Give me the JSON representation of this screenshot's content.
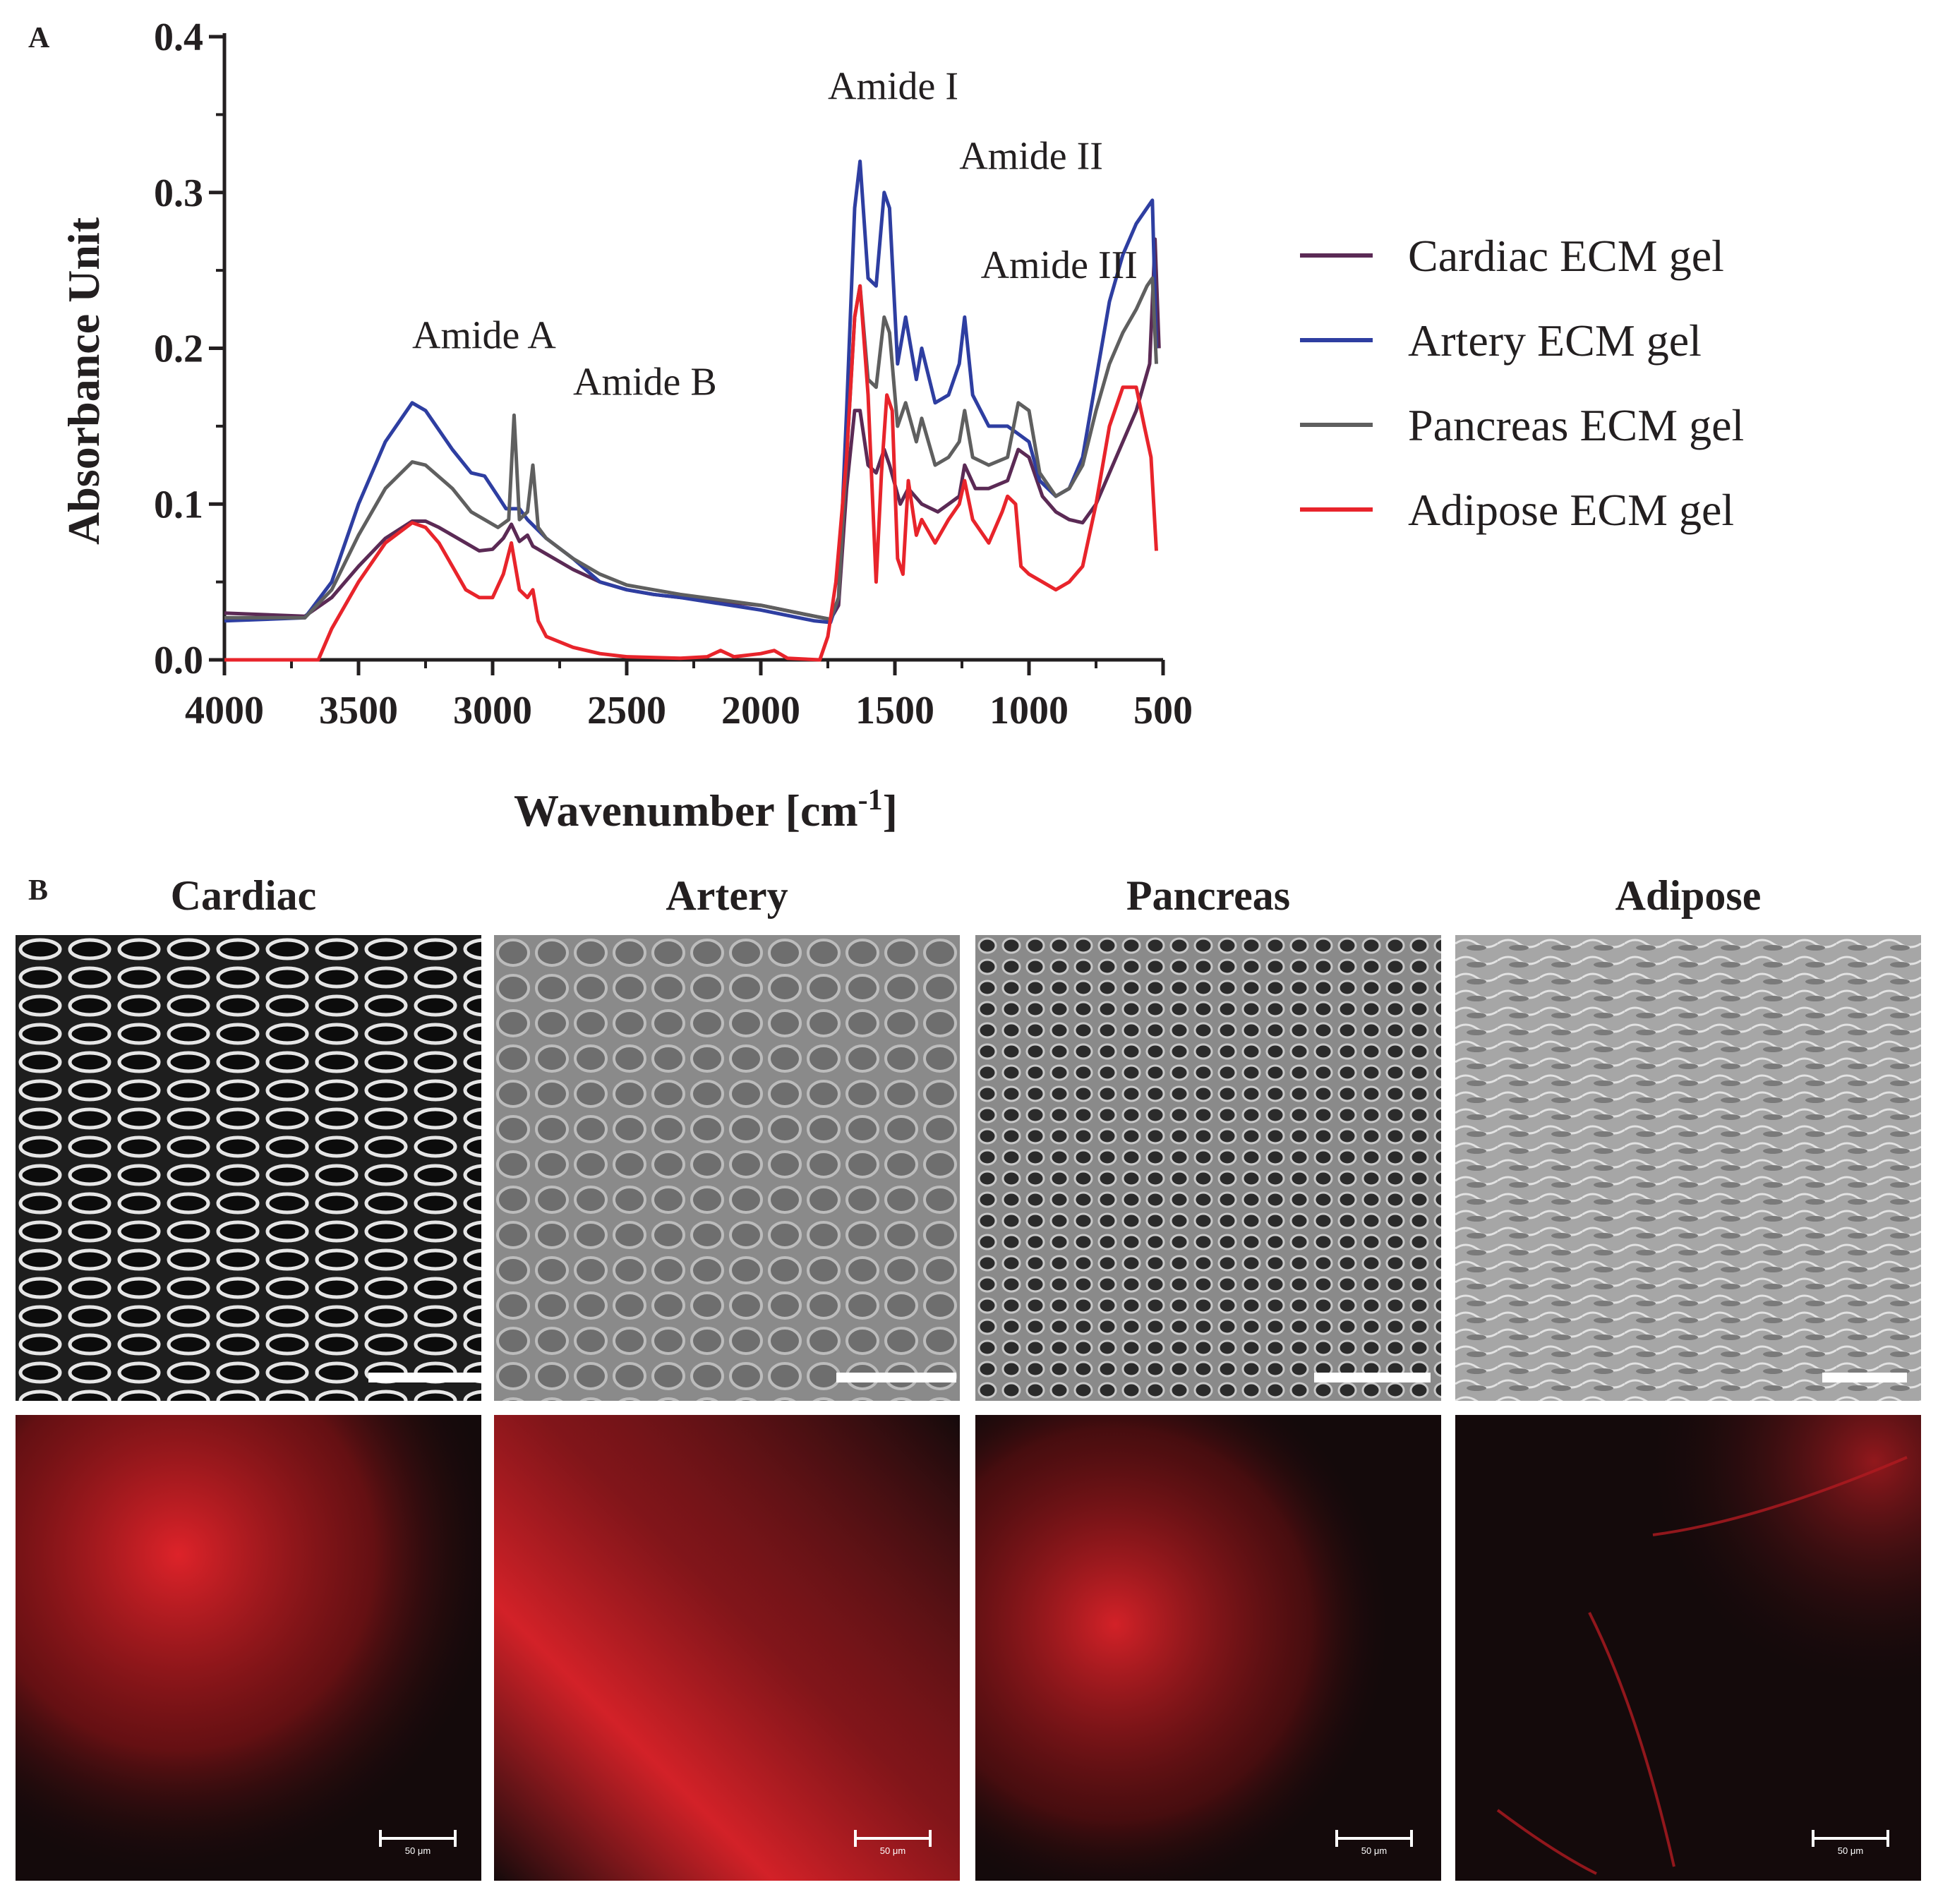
{
  "panels": {
    "a_letter": "A",
    "b_letter": "B"
  },
  "chart_data": {
    "type": "line",
    "title": "",
    "xlabel": "Wavenumber [cm",
    "xlabel_sup": "-1",
    "xlabel_end": "]",
    "ylabel": "Absorbance Unit",
    "xlim": [
      4000,
      500
    ],
    "ylim": [
      0,
      0.4
    ],
    "x_ticks": [
      4000,
      3500,
      3000,
      2500,
      2000,
      1500,
      1000,
      500
    ],
    "y_ticks": [
      "0.0",
      "0.1",
      "0.2",
      "0.3",
      "0.4"
    ],
    "legend_position": "right",
    "annotations": [
      {
        "text": "Amide A",
        "x": 3300,
        "y": 0.2
      },
      {
        "text": "Amide B",
        "x": 2700,
        "y": 0.17
      },
      {
        "text": "Amide I",
        "x": 1750,
        "y": 0.36
      },
      {
        "text": "Amide II",
        "x": 1260,
        "y": 0.315
      },
      {
        "text": "Amide III",
        "x": 1180,
        "y": 0.245
      }
    ],
    "series": [
      {
        "name": "Cardiac ECM gel",
        "color": "#5b2a55",
        "points": [
          [
            4000,
            0.03
          ],
          [
            3700,
            0.028
          ],
          [
            3600,
            0.04
          ],
          [
            3500,
            0.06
          ],
          [
            3400,
            0.078
          ],
          [
            3300,
            0.089
          ],
          [
            3250,
            0.089
          ],
          [
            3200,
            0.085
          ],
          [
            3100,
            0.075
          ],
          [
            3050,
            0.07
          ],
          [
            3000,
            0.071
          ],
          [
            2960,
            0.078
          ],
          [
            2930,
            0.087
          ],
          [
            2900,
            0.076
          ],
          [
            2870,
            0.08
          ],
          [
            2850,
            0.073
          ],
          [
            2800,
            0.068
          ],
          [
            2700,
            0.058
          ],
          [
            2600,
            0.05
          ],
          [
            2500,
            0.045
          ],
          [
            2400,
            0.042
          ],
          [
            2300,
            0.04
          ],
          [
            2000,
            0.035
          ],
          [
            1800,
            0.028
          ],
          [
            1740,
            0.026
          ],
          [
            1710,
            0.035
          ],
          [
            1680,
            0.11
          ],
          [
            1650,
            0.16
          ],
          [
            1630,
            0.16
          ],
          [
            1600,
            0.125
          ],
          [
            1570,
            0.12
          ],
          [
            1540,
            0.135
          ],
          [
            1520,
            0.125
          ],
          [
            1480,
            0.1
          ],
          [
            1450,
            0.11
          ],
          [
            1400,
            0.1
          ],
          [
            1340,
            0.095
          ],
          [
            1300,
            0.1
          ],
          [
            1260,
            0.105
          ],
          [
            1240,
            0.125
          ],
          [
            1200,
            0.11
          ],
          [
            1150,
            0.11
          ],
          [
            1080,
            0.115
          ],
          [
            1040,
            0.135
          ],
          [
            1000,
            0.13
          ],
          [
            950,
            0.105
          ],
          [
            900,
            0.095
          ],
          [
            850,
            0.09
          ],
          [
            800,
            0.088
          ],
          [
            750,
            0.1
          ],
          [
            700,
            0.12
          ],
          [
            650,
            0.14
          ],
          [
            600,
            0.16
          ],
          [
            550,
            0.19
          ],
          [
            530,
            0.27
          ],
          [
            515,
            0.2
          ]
        ]
      },
      {
        "name": "Artery ECM gel",
        "color": "#2e3ea1",
        "points": [
          [
            4000,
            0.025
          ],
          [
            3700,
            0.027
          ],
          [
            3600,
            0.05
          ],
          [
            3500,
            0.1
          ],
          [
            3400,
            0.14
          ],
          [
            3300,
            0.165
          ],
          [
            3250,
            0.16
          ],
          [
            3150,
            0.135
          ],
          [
            3080,
            0.12
          ],
          [
            3030,
            0.118
          ],
          [
            2980,
            0.105
          ],
          [
            2950,
            0.097
          ],
          [
            2900,
            0.097
          ],
          [
            2870,
            0.09
          ],
          [
            2800,
            0.078
          ],
          [
            2700,
            0.065
          ],
          [
            2600,
            0.05
          ],
          [
            2500,
            0.045
          ],
          [
            2400,
            0.042
          ],
          [
            2300,
            0.04
          ],
          [
            2000,
            0.032
          ],
          [
            1800,
            0.025
          ],
          [
            1740,
            0.024
          ],
          [
            1710,
            0.04
          ],
          [
            1680,
            0.16
          ],
          [
            1650,
            0.29
          ],
          [
            1630,
            0.32
          ],
          [
            1600,
            0.245
          ],
          [
            1570,
            0.24
          ],
          [
            1540,
            0.3
          ],
          [
            1520,
            0.29
          ],
          [
            1490,
            0.19
          ],
          [
            1460,
            0.22
          ],
          [
            1420,
            0.18
          ],
          [
            1400,
            0.2
          ],
          [
            1350,
            0.165
          ],
          [
            1300,
            0.17
          ],
          [
            1260,
            0.19
          ],
          [
            1240,
            0.22
          ],
          [
            1210,
            0.17
          ],
          [
            1150,
            0.15
          ],
          [
            1080,
            0.15
          ],
          [
            1040,
            0.145
          ],
          [
            1000,
            0.14
          ],
          [
            960,
            0.115
          ],
          [
            900,
            0.105
          ],
          [
            850,
            0.11
          ],
          [
            800,
            0.13
          ],
          [
            750,
            0.18
          ],
          [
            700,
            0.23
          ],
          [
            650,
            0.26
          ],
          [
            600,
            0.28
          ],
          [
            560,
            0.29
          ],
          [
            540,
            0.295
          ],
          [
            525,
            0.2
          ]
        ]
      },
      {
        "name": "Pancreas ECM gel",
        "color": "#5f5f5f",
        "points": [
          [
            4000,
            0.027
          ],
          [
            3700,
            0.027
          ],
          [
            3600,
            0.045
          ],
          [
            3500,
            0.08
          ],
          [
            3400,
            0.11
          ],
          [
            3300,
            0.127
          ],
          [
            3250,
            0.125
          ],
          [
            3150,
            0.11
          ],
          [
            3080,
            0.095
          ],
          [
            3030,
            0.09
          ],
          [
            2980,
            0.085
          ],
          [
            2940,
            0.09
          ],
          [
            2920,
            0.157
          ],
          [
            2900,
            0.09
          ],
          [
            2870,
            0.095
          ],
          [
            2850,
            0.125
          ],
          [
            2830,
            0.085
          ],
          [
            2800,
            0.078
          ],
          [
            2700,
            0.065
          ],
          [
            2600,
            0.055
          ],
          [
            2500,
            0.048
          ],
          [
            2400,
            0.045
          ],
          [
            2300,
            0.042
          ],
          [
            2000,
            0.035
          ],
          [
            1800,
            0.028
          ],
          [
            1740,
            0.026
          ],
          [
            1710,
            0.04
          ],
          [
            1680,
            0.13
          ],
          [
            1650,
            0.22
          ],
          [
            1630,
            0.24
          ],
          [
            1600,
            0.18
          ],
          [
            1570,
            0.175
          ],
          [
            1540,
            0.22
          ],
          [
            1520,
            0.21
          ],
          [
            1490,
            0.15
          ],
          [
            1460,
            0.165
          ],
          [
            1420,
            0.14
          ],
          [
            1400,
            0.155
          ],
          [
            1350,
            0.125
          ],
          [
            1300,
            0.13
          ],
          [
            1260,
            0.14
          ],
          [
            1240,
            0.16
          ],
          [
            1210,
            0.13
          ],
          [
            1150,
            0.125
          ],
          [
            1080,
            0.13
          ],
          [
            1040,
            0.165
          ],
          [
            1000,
            0.16
          ],
          [
            960,
            0.12
          ],
          [
            900,
            0.105
          ],
          [
            850,
            0.11
          ],
          [
            800,
            0.125
          ],
          [
            750,
            0.16
          ],
          [
            700,
            0.19
          ],
          [
            650,
            0.21
          ],
          [
            600,
            0.225
          ],
          [
            560,
            0.24
          ],
          [
            540,
            0.245
          ],
          [
            525,
            0.19
          ]
        ]
      },
      {
        "name": "Adipose ECM gel",
        "color": "#e8242b",
        "points": [
          [
            4000,
            0.0
          ],
          [
            3650,
            0.0
          ],
          [
            3600,
            0.02
          ],
          [
            3500,
            0.05
          ],
          [
            3400,
            0.075
          ],
          [
            3300,
            0.088
          ],
          [
            3250,
            0.085
          ],
          [
            3200,
            0.075
          ],
          [
            3150,
            0.06
          ],
          [
            3100,
            0.045
          ],
          [
            3050,
            0.04
          ],
          [
            3000,
            0.04
          ],
          [
            2960,
            0.055
          ],
          [
            2930,
            0.075
          ],
          [
            2900,
            0.045
          ],
          [
            2870,
            0.04
          ],
          [
            2850,
            0.045
          ],
          [
            2830,
            0.025
          ],
          [
            2800,
            0.015
          ],
          [
            2700,
            0.008
          ],
          [
            2600,
            0.004
          ],
          [
            2500,
            0.002
          ],
          [
            2300,
            0.001
          ],
          [
            2200,
            0.002
          ],
          [
            2150,
            0.006
          ],
          [
            2100,
            0.002
          ],
          [
            2000,
            0.004
          ],
          [
            1950,
            0.006
          ],
          [
            1900,
            0.001
          ],
          [
            1780,
            0.0
          ],
          [
            1750,
            0.015
          ],
          [
            1720,
            0.05
          ],
          [
            1700,
            0.09
          ],
          [
            1680,
            0.13
          ],
          [
            1650,
            0.22
          ],
          [
            1630,
            0.24
          ],
          [
            1600,
            0.17
          ],
          [
            1570,
            0.05
          ],
          [
            1550,
            0.12
          ],
          [
            1530,
            0.17
          ],
          [
            1510,
            0.16
          ],
          [
            1490,
            0.065
          ],
          [
            1470,
            0.055
          ],
          [
            1450,
            0.115
          ],
          [
            1420,
            0.08
          ],
          [
            1400,
            0.09
          ],
          [
            1350,
            0.075
          ],
          [
            1300,
            0.09
          ],
          [
            1260,
            0.1
          ],
          [
            1240,
            0.115
          ],
          [
            1210,
            0.09
          ],
          [
            1150,
            0.075
          ],
          [
            1100,
            0.095
          ],
          [
            1080,
            0.105
          ],
          [
            1050,
            0.1
          ],
          [
            1030,
            0.06
          ],
          [
            1000,
            0.055
          ],
          [
            950,
            0.05
          ],
          [
            900,
            0.045
          ],
          [
            850,
            0.05
          ],
          [
            800,
            0.06
          ],
          [
            750,
            0.1
          ],
          [
            700,
            0.15
          ],
          [
            650,
            0.175
          ],
          [
            600,
            0.175
          ],
          [
            570,
            0.15
          ],
          [
            545,
            0.13
          ],
          [
            525,
            0.07
          ]
        ]
      }
    ]
  },
  "panel_b": {
    "columns": [
      "Cardiac",
      "Artery",
      "Pancreas",
      "Adipose"
    ],
    "scale_label": "50 μm"
  }
}
